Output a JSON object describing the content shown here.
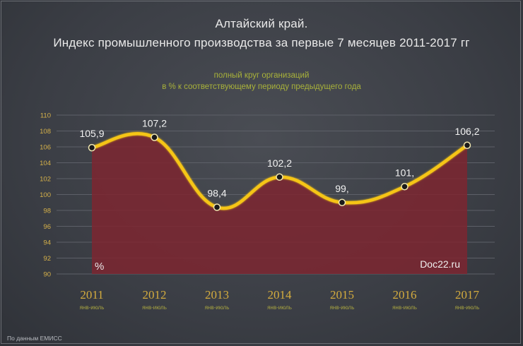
{
  "header": {
    "title_line1": "Алтайский край.",
    "title_line2": "Индекс промышленного производства за первые 7 месяцев 2011-2017 гг",
    "subtitle_line1": "полный круг организаций",
    "subtitle_line2": "в % к соответствующему периоду предыдущего года"
  },
  "footer": {
    "source": "По данным ЕМИСС"
  },
  "colors": {
    "line": "#f5c518",
    "area": "#7d2630",
    "marker_fill": "#1a1a1a",
    "axis_text": "#d7b24a"
  },
  "chart_data": {
    "type": "area",
    "categories": [
      "2011",
      "2012",
      "2013",
      "2014",
      "2015",
      "2016",
      "2017"
    ],
    "period_labels": [
      "янв-июль",
      "янв-июль",
      "янв-июль",
      "янв-июль",
      "янв-июль",
      "янв-июль",
      "янв-июль"
    ],
    "values": [
      105.9,
      107.2,
      98.4,
      102.2,
      99.0,
      101.0,
      106.2
    ],
    "data_labels": [
      "105,9",
      "107,2",
      "98,4",
      "102,2",
      "99,",
      "101,",
      "106,2"
    ],
    "ylim": [
      90,
      110
    ],
    "yticks": [
      90,
      92,
      94,
      96,
      98,
      100,
      102,
      104,
      106,
      108,
      110
    ],
    "unit_label": "%",
    "watermark": "Doc22.ru",
    "grid": true,
    "legend": "none"
  }
}
